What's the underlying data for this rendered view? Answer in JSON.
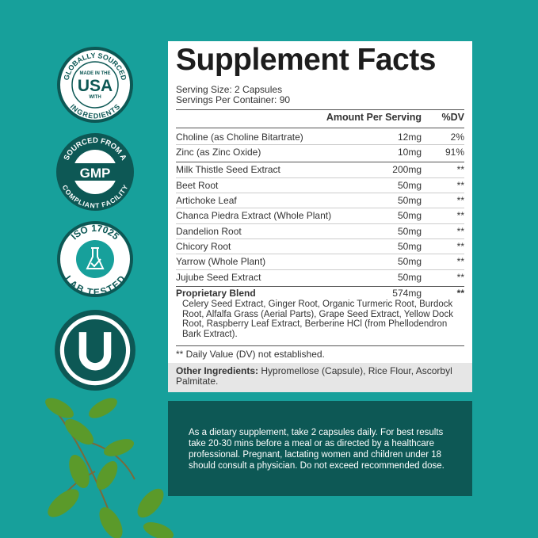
{
  "badges": [
    {
      "icon": "usa-badge",
      "top": "GLOBALLY SOURCED",
      "main": "USA",
      "small_top": "MADE IN THE",
      "small_bottom": "WITH",
      "bottom": "INGREDIENTS"
    },
    {
      "icon": "gmp-badge",
      "top": "SOURCED FROM A",
      "main": "GMP",
      "bottom": "COMPLIANT FACILITY"
    },
    {
      "icon": "iso-badge",
      "top": "ISO 17025",
      "bottom": "LAB TESTED"
    },
    {
      "icon": "kosher-u-badge",
      "main": "U"
    }
  ],
  "facts": {
    "title": "Supplement Facts",
    "serving_size": "Serving Size: 2 Capsules",
    "servings_per_container": "Servings Per Container: 90",
    "header": {
      "amount": "Amount Per Serving",
      "dv": "%DV"
    },
    "rows": [
      {
        "name": "Choline (as Choline Bitartrate)",
        "amount": "12mg",
        "dv": "2%"
      },
      {
        "name": "Zinc (as Zinc Oxide)",
        "amount": "10mg",
        "dv": "91%"
      },
      {
        "name": "Milk Thistle Seed Extract",
        "amount": "200mg",
        "dv": "**"
      },
      {
        "name": "Beet Root",
        "amount": "50mg",
        "dv": "**"
      },
      {
        "name": "Artichoke Leaf",
        "amount": "50mg",
        "dv": "**"
      },
      {
        "name": "Chanca Piedra Extract (Whole Plant)",
        "amount": "50mg",
        "dv": "**"
      },
      {
        "name": "Dandelion Root",
        "amount": "50mg",
        "dv": "**"
      },
      {
        "name": "Chicory Root",
        "amount": "50mg",
        "dv": "**"
      },
      {
        "name": "Yarrow (Whole Plant)",
        "amount": "50mg",
        "dv": "**"
      },
      {
        "name": "Jujube Seed Extract",
        "amount": "50mg",
        "dv": "**"
      }
    ],
    "blend": {
      "name": "Proprietary Blend",
      "amount": "574mg",
      "dv": "**",
      "ingredients": "Celery Seed Extract, Ginger Root, Organic Turmeric Root, Burdock Root, Alfalfa Grass (Aerial Parts), Grape Seed Extract, Yellow Dock Root, Raspberry Leaf Extract, Berberine HCl (from Phellodendron Bark Extract)."
    },
    "footnote": "** Daily Value (DV) not established.",
    "other_label": "Other Ingredients:",
    "other_value": " Hypromellose (Capsule), Rice Flour, Ascorbyl Palmitate."
  },
  "directions": "As a dietary supplement, take 2 capsules daily. For best results take 20-30 mins before a meal or as directed by a healthcare professional. Pregnant, lactating women and children under 18 should consult a physician. Do not exceed recommended dose.",
  "colors": {
    "background": "#17a09b",
    "dark_teal": "#0d5855",
    "leaf": "#5b9a2a"
  }
}
